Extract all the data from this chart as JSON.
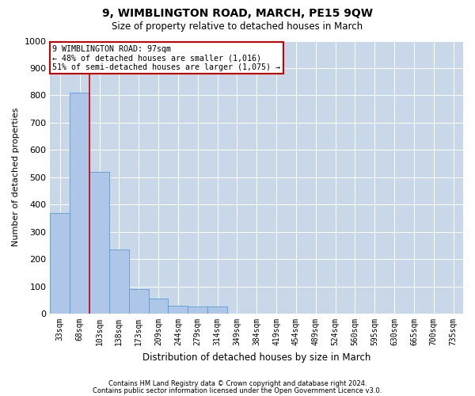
{
  "title": "9, WIMBLINGTON ROAD, MARCH, PE15 9QW",
  "subtitle": "Size of property relative to detached houses in March",
  "xlabel": "Distribution of detached houses by size in March",
  "ylabel": "Number of detached properties",
  "footnote1": "Contains HM Land Registry data © Crown copyright and database right 2024.",
  "footnote2": "Contains public sector information licensed under the Open Government Licence v3.0.",
  "bar_color": "#aec6e8",
  "bar_edge_color": "#5a9bd4",
  "grid_color": "#c8d8e8",
  "annotation_box_color": "#cc0000",
  "vline_color": "#cc0000",
  "categories": [
    "33sqm",
    "68sqm",
    "103sqm",
    "138sqm",
    "173sqm",
    "209sqm",
    "244sqm",
    "279sqm",
    "314sqm",
    "349sqm",
    "384sqm",
    "419sqm",
    "454sqm",
    "489sqm",
    "524sqm",
    "560sqm",
    "595sqm",
    "630sqm",
    "665sqm",
    "700sqm",
    "735sqm"
  ],
  "values": [
    370,
    810,
    520,
    235,
    90,
    55,
    30,
    25,
    25,
    0,
    0,
    0,
    0,
    0,
    0,
    0,
    0,
    0,
    0,
    0,
    0
  ],
  "ylim": [
    0,
    1000
  ],
  "yticks": [
    0,
    100,
    200,
    300,
    400,
    500,
    600,
    700,
    800,
    900,
    1000
  ],
  "vline_position": 1.5,
  "annotation_line1": "9 WIMBLINGTON ROAD: 97sqm",
  "annotation_line2": "← 48% of detached houses are smaller (1,016)",
  "annotation_line3": "51% of semi-detached houses are larger (1,075) →"
}
